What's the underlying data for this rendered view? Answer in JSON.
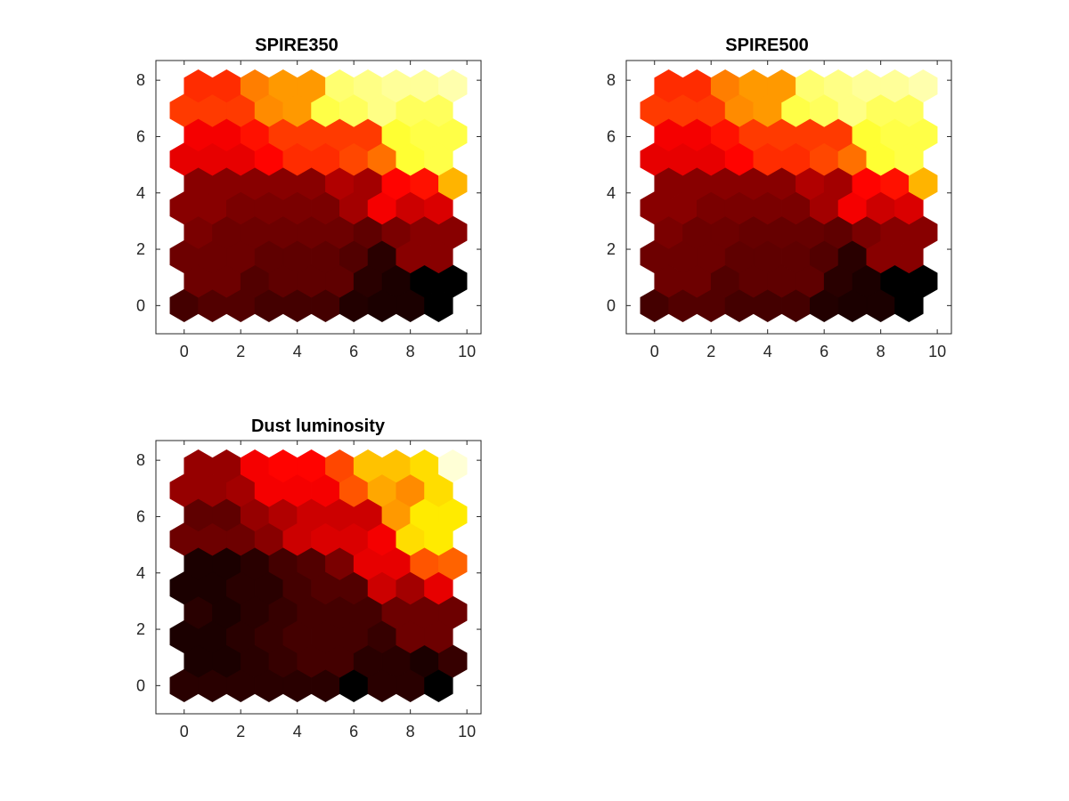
{
  "chart_data": [
    {
      "type": "heatmap",
      "title": "SPIRE350",
      "xlabel": "",
      "ylabel": "",
      "xlim": [
        -1,
        10.5
      ],
      "ylim": [
        -1,
        8.7
      ],
      "xticks": [
        "0",
        "2",
        "4",
        "6",
        "8",
        "10"
      ],
      "yticks": [
        "0",
        "2",
        "4",
        "6",
        "8"
      ],
      "colormap": "hot",
      "grid": false,
      "legend": "none",
      "rows": [
        [
          0.1,
          0.12,
          0.12,
          0.1,
          0.1,
          0.1,
          0.05,
          0.04,
          0.04,
          0.0
        ],
        [
          0.16,
          0.16,
          0.12,
          0.14,
          0.14,
          0.14,
          0.06,
          0.04,
          0.0,
          0.0
        ],
        [
          0.16,
          0.16,
          0.16,
          0.14,
          0.14,
          0.14,
          0.12,
          0.06,
          0.2,
          0.2
        ],
        [
          0.18,
          0.16,
          0.16,
          0.16,
          0.16,
          0.16,
          0.14,
          0.18,
          0.2,
          0.2
        ],
        [
          0.2,
          0.2,
          0.18,
          0.18,
          0.18,
          0.18,
          0.24,
          0.36,
          0.3,
          0.32
        ],
        [
          0.2,
          0.2,
          0.2,
          0.2,
          0.2,
          0.26,
          0.24,
          0.38,
          0.4,
          0.64
        ],
        [
          0.34,
          0.34,
          0.34,
          0.38,
          0.44,
          0.44,
          0.48,
          0.54,
          0.8,
          0.82
        ],
        [
          0.36,
          0.36,
          0.4,
          0.46,
          0.46,
          0.46,
          0.46,
          0.8,
          0.82,
          0.82
        ],
        [
          0.46,
          0.46,
          0.46,
          0.58,
          0.6,
          0.82,
          0.84,
          0.88,
          0.84,
          0.84
        ],
        [
          0.44,
          0.44,
          0.56,
          0.6,
          0.6,
          0.86,
          0.88,
          0.9,
          0.9,
          0.92
        ]
      ]
    },
    {
      "type": "heatmap",
      "title": "SPIRE500",
      "xlabel": "",
      "ylabel": "",
      "xlim": [
        -1,
        10.5
      ],
      "ylim": [
        -1,
        8.7
      ],
      "xticks": [
        "0",
        "2",
        "4",
        "6",
        "8",
        "10"
      ],
      "yticks": [
        "0",
        "2",
        "4",
        "6",
        "8"
      ],
      "colormap": "hot",
      "grid": false,
      "legend": "none",
      "rows": [
        [
          0.1,
          0.12,
          0.12,
          0.1,
          0.1,
          0.1,
          0.05,
          0.04,
          0.04,
          0.0
        ],
        [
          0.16,
          0.16,
          0.12,
          0.14,
          0.14,
          0.14,
          0.06,
          0.04,
          0.0,
          0.0
        ],
        [
          0.16,
          0.16,
          0.16,
          0.14,
          0.14,
          0.14,
          0.12,
          0.06,
          0.2,
          0.2
        ],
        [
          0.18,
          0.16,
          0.16,
          0.15,
          0.15,
          0.15,
          0.14,
          0.18,
          0.2,
          0.2
        ],
        [
          0.2,
          0.2,
          0.18,
          0.18,
          0.18,
          0.18,
          0.24,
          0.36,
          0.3,
          0.32
        ],
        [
          0.2,
          0.2,
          0.2,
          0.2,
          0.2,
          0.26,
          0.24,
          0.38,
          0.4,
          0.64
        ],
        [
          0.34,
          0.34,
          0.34,
          0.38,
          0.44,
          0.44,
          0.48,
          0.54,
          0.8,
          0.82
        ],
        [
          0.36,
          0.36,
          0.4,
          0.46,
          0.46,
          0.46,
          0.46,
          0.8,
          0.82,
          0.82
        ],
        [
          0.46,
          0.46,
          0.46,
          0.58,
          0.6,
          0.82,
          0.84,
          0.88,
          0.84,
          0.84
        ],
        [
          0.44,
          0.44,
          0.56,
          0.6,
          0.6,
          0.86,
          0.88,
          0.9,
          0.9,
          0.92
        ]
      ]
    },
    {
      "type": "heatmap",
      "title": "Dust luminosity",
      "xlabel": "",
      "ylabel": "",
      "xlim": [
        -1,
        10.5
      ],
      "ylim": [
        -1,
        8.7
      ],
      "xticks": [
        "0",
        "2",
        "4",
        "6",
        "8",
        "10"
      ],
      "yticks": [
        "0",
        "2",
        "4",
        "6",
        "8"
      ],
      "colormap": "hot",
      "grid": false,
      "legend": "none",
      "rows": [
        [
          0.06,
          0.06,
          0.06,
          0.06,
          0.06,
          0.06,
          0.0,
          0.06,
          0.06,
          0.0
        ],
        [
          0.04,
          0.04,
          0.06,
          0.08,
          0.1,
          0.1,
          0.06,
          0.06,
          0.04,
          0.08
        ],
        [
          0.04,
          0.04,
          0.06,
          0.08,
          0.1,
          0.1,
          0.1,
          0.08,
          0.16,
          0.16
        ],
        [
          0.06,
          0.04,
          0.06,
          0.08,
          0.1,
          0.1,
          0.1,
          0.16,
          0.16,
          0.16
        ],
        [
          0.04,
          0.04,
          0.06,
          0.06,
          0.1,
          0.12,
          0.12,
          0.3,
          0.24,
          0.34
        ],
        [
          0.04,
          0.04,
          0.06,
          0.1,
          0.12,
          0.18,
          0.34,
          0.34,
          0.5,
          0.52
        ],
        [
          0.16,
          0.16,
          0.16,
          0.2,
          0.3,
          0.32,
          0.32,
          0.36,
          0.7,
          0.72
        ],
        [
          0.14,
          0.14,
          0.22,
          0.26,
          0.3,
          0.3,
          0.3,
          0.6,
          0.72,
          0.72
        ],
        [
          0.22,
          0.22,
          0.24,
          0.36,
          0.36,
          0.36,
          0.5,
          0.62,
          0.58,
          0.7
        ],
        [
          0.22,
          0.22,
          0.36,
          0.38,
          0.38,
          0.48,
          0.66,
          0.66,
          0.7,
          0.96
        ]
      ]
    }
  ]
}
